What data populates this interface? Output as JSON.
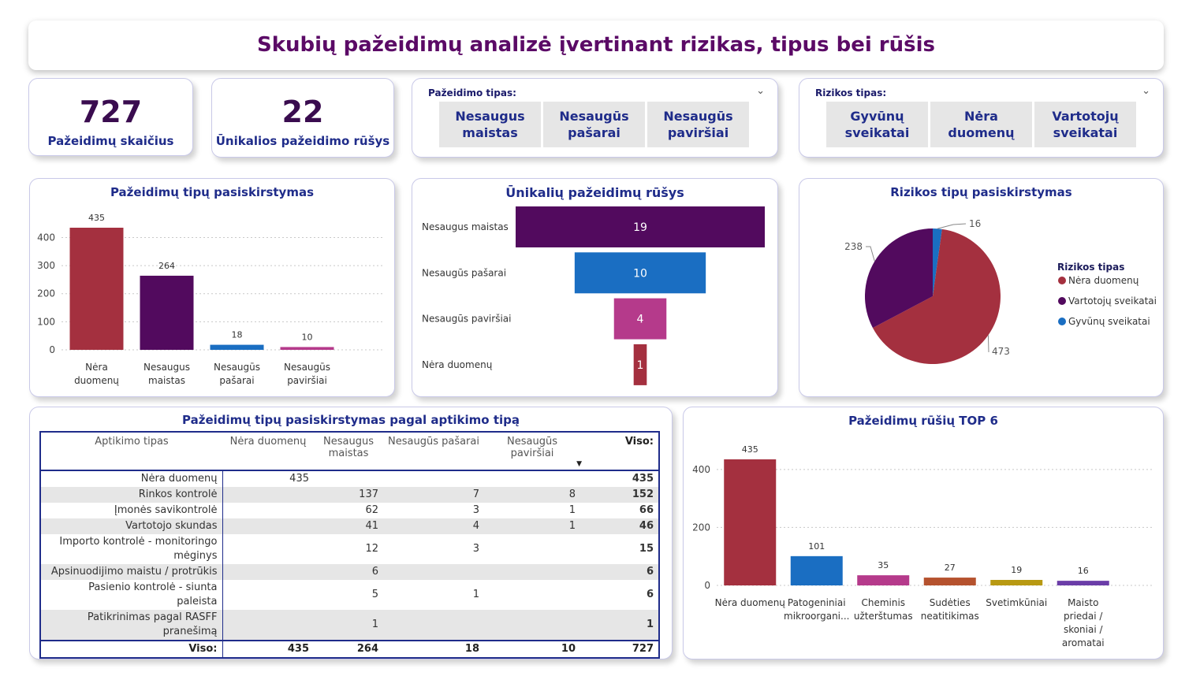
{
  "title": "Skubių pažeidimų analizė įvertinant rizikas, tipus bei rūšis",
  "kpis": [
    {
      "value": "727",
      "label": "Pažeidimų skaičius"
    },
    {
      "value": "22",
      "label": "Ūnikalios pažeidimo rūšys"
    }
  ],
  "slicer_type": {
    "header": "Pažeidimo tipas:",
    "options": [
      "Nesaugus maistas",
      "Nesaugūs pašarai",
      "Nesaugūs paviršiai"
    ]
  },
  "slicer_risk": {
    "header": "Rizikos tipas:",
    "options": [
      "Gyvūnų sveikatai",
      "Nėra duomenų",
      "Vartotojų sveikatai"
    ]
  },
  "colors": {
    "red": "#a4303f",
    "purple": "#520a5e",
    "blue": "#1a6ec2",
    "pink": "#b53a8b",
    "brown": "#b5522e",
    "olive": "#b89912",
    "violet": "#6b3da8"
  },
  "chart_data": [
    {
      "type": "bar",
      "title": "Pažeidimų tipų pasiskirstymas",
      "categories": [
        "Nėra duomenų",
        "Nesaugus maistas",
        "Nesaugūs pašarai",
        "Nesaugūs paviršiai"
      ],
      "values": [
        435,
        264,
        18,
        10
      ],
      "colors": [
        "#a4303f",
        "#520a5e",
        "#1a6ec2",
        "#b53a8b"
      ],
      "yticks": [
        0,
        100,
        200,
        300,
        400
      ],
      "ylim": [
        0,
        435
      ],
      "grid": true
    },
    {
      "type": "funnel",
      "title": "Ūnikalių pažeidimų rūšys",
      "categories": [
        "Nesaugus maistas",
        "Nesaugūs pašarai",
        "Nesaugūs paviršiai",
        "Nėra duomenų"
      ],
      "values": [
        19,
        10,
        4,
        1
      ],
      "colors": [
        "#520a5e",
        "#1a6ec2",
        "#b53a8b",
        "#a4303f"
      ]
    },
    {
      "type": "pie",
      "title": "Rizikos tipų pasiskirstymas",
      "legend_title": "Rizikos tipas",
      "legend_position": "right",
      "slices": [
        {
          "label": "Nėra duomenų",
          "value": 473,
          "color": "#a4303f"
        },
        {
          "label": "Vartotojų sveikatai",
          "value": 238,
          "color": "#520a5e"
        },
        {
          "label": "Gyvūnų sveikatai",
          "value": 16,
          "color": "#1a6ec2"
        }
      ]
    },
    {
      "type": "table",
      "title": "Pažeidimų tipų pasiskirstymas pagal aptikimo tipą",
      "columns": [
        "Aptikimo tipas",
        "Nėra duomenų",
        "Nesaugus maistas",
        "Nesaugūs pašarai",
        "Nesaugūs paviršiai",
        "Viso:"
      ],
      "rows": [
        [
          "Nėra duomenų",
          "435",
          "",
          "",
          "",
          "435"
        ],
        [
          "Rinkos kontrolė",
          "",
          "137",
          "7",
          "8",
          "152"
        ],
        [
          "Įmonės savikontrolė",
          "",
          "62",
          "3",
          "1",
          "66"
        ],
        [
          "Vartotojo skundas",
          "",
          "41",
          "4",
          "1",
          "46"
        ],
        [
          "Importo kontrolė - monitoringo mėginys",
          "",
          "12",
          "3",
          "",
          "15"
        ],
        [
          "Apsinuodijimo maistu / protrūkis",
          "",
          "6",
          "",
          "",
          "6"
        ],
        [
          "Pasienio kontrolė - siunta paleista",
          "",
          "5",
          "1",
          "",
          "6"
        ],
        [
          "Patikrinimas pagal RASFF pranešimą",
          "",
          "1",
          "",
          "",
          "1"
        ]
      ],
      "totals": [
        "Viso:",
        "435",
        "264",
        "18",
        "10",
        "727"
      ]
    },
    {
      "type": "bar",
      "title": "Pažeidimų rūšių TOP 6",
      "categories": [
        "Nėra duomenų",
        "Patogeniniai mikroorgani...",
        "Cheminis užterštumas",
        "Sudėties neatitikimas",
        "Svetimkūniai",
        "Maisto priedai / skoniai / aromatai"
      ],
      "values": [
        435,
        101,
        35,
        27,
        19,
        16
      ],
      "colors": [
        "#a4303f",
        "#1a6ec2",
        "#b53a8b",
        "#b5522e",
        "#b89912",
        "#6b3da8"
      ],
      "yticks": [
        0,
        200,
        400
      ],
      "ylim": [
        0,
        435
      ],
      "grid": true
    }
  ]
}
